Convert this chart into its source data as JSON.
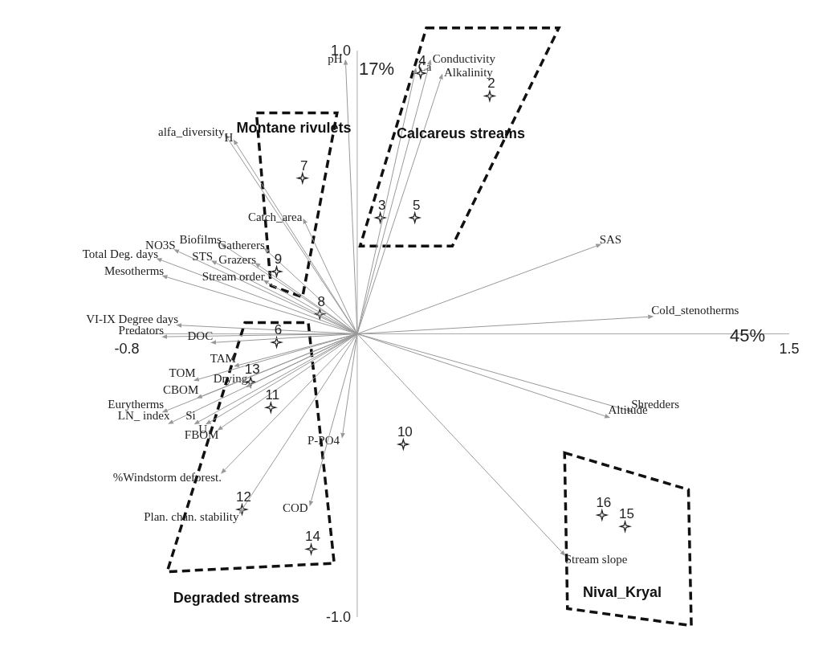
{
  "chart_data": {
    "type": "scatter",
    "xlabel": "45%",
    "ylabel": "17%",
    "xlim": [
      -0.8,
      1.5
    ],
    "ylim": [
      -1.0,
      1.0
    ],
    "xticks": [
      -0.8,
      1.5
    ],
    "yticks": [
      {
        "value": -1.0,
        "label": "-1.0"
      },
      {
        "value": 1.0,
        "label": "1.0"
      }
    ],
    "grid": false,
    "series": [
      {
        "type": "scatter",
        "marker": "star",
        "color": "#222222",
        "x": [
          0.46,
          0.22,
          0.08,
          0.2,
          -0.19,
          -0.28,
          -0.13,
          -0.28,
          -0.37,
          -0.3,
          0.16,
          -0.4,
          -0.16,
          0.85,
          0.93
        ],
        "values": [
          0.84,
          0.92,
          0.41,
          0.41,
          0.55,
          0.22,
          0.07,
          -0.03,
          -0.17,
          -0.26,
          -0.39,
          -0.62,
          -0.76,
          -0.64,
          -0.68
        ]
      },
      {
        "type": "line",
        "name": "pH",
        "color": "#999999",
        "x": [
          0,
          -0.04
        ],
        "values": [
          0,
          0.95
        ]
      },
      {
        "type": "line",
        "name": "Ca",
        "color": "#999999",
        "x": [
          0,
          0.2
        ],
        "values": [
          0,
          0.92
        ]
      },
      {
        "type": "line",
        "name": "Conductivity",
        "color": "#999999",
        "x": [
          0,
          0.25
        ],
        "values": [
          0,
          0.95
        ]
      },
      {
        "type": "line",
        "name": "Alkalinity",
        "color": "#999999",
        "x": [
          0,
          0.29
        ],
        "values": [
          0,
          0.9
        ]
      },
      {
        "type": "line",
        "name": "alfa_diversity",
        "color": "#999999",
        "x": [
          0,
          -0.45
        ],
        "values": [
          0,
          0.69
        ]
      },
      {
        "type": "line",
        "name": "H",
        "color": "#999999",
        "x": [
          0,
          -0.42
        ],
        "values": [
          0,
          0.67
        ]
      },
      {
        "type": "line",
        "name": "Catch_area",
        "color": "#999999",
        "x": [
          0,
          -0.18
        ],
        "values": [
          0,
          0.39
        ]
      },
      {
        "type": "line",
        "name": "Biofilms",
        "color": "#999999",
        "x": [
          0,
          -0.46
        ],
        "values": [
          0,
          0.31
        ]
      },
      {
        "type": "line",
        "name": "NO3S",
        "color": "#999999",
        "x": [
          0,
          -0.62
        ],
        "values": [
          0,
          0.29
        ]
      },
      {
        "type": "line",
        "name": "STS",
        "color": "#999999",
        "x": [
          0,
          -0.49
        ],
        "values": [
          0,
          0.25
        ]
      },
      {
        "type": "line",
        "name": "Gatherers",
        "color": "#999999",
        "x": [
          0,
          -0.31
        ],
        "values": [
          0,
          0.29
        ]
      },
      {
        "type": "line",
        "name": "Grazers",
        "color": "#999999",
        "x": [
          0,
          -0.34
        ],
        "values": [
          0,
          0.24
        ]
      },
      {
        "type": "line",
        "name": "Total Deg. days",
        "color": "#999999",
        "x": [
          0,
          -0.68
        ],
        "values": [
          0,
          0.26
        ]
      },
      {
        "type": "line",
        "name": "Mesotherms",
        "color": "#999999",
        "x": [
          0,
          -0.66
        ],
        "values": [
          0,
          0.2
        ]
      },
      {
        "type": "line",
        "name": "Stream order",
        "color": "#999999",
        "x": [
          0,
          -0.31
        ],
        "values": [
          0,
          0.18
        ]
      },
      {
        "type": "line",
        "name": "SAS",
        "color": "#999999",
        "x": [
          0,
          0.83
        ],
        "values": [
          0,
          0.31
        ]
      },
      {
        "type": "line",
        "name": "Cold_stenotherms",
        "color": "#999999",
        "x": [
          0,
          1.01
        ],
        "values": [
          0,
          0.06
        ]
      },
      {
        "type": "line",
        "name": "VI-IX Degree days",
        "color": "#999999",
        "x": [
          0,
          -0.61
        ],
        "values": [
          0,
          0.03
        ]
      },
      {
        "type": "line",
        "name": "Predators",
        "color": "#999999",
        "x": [
          0,
          -0.66
        ],
        "values": [
          0,
          -0.01
        ]
      },
      {
        "type": "line",
        "name": "DOC",
        "color": "#999999",
        "x": [
          0,
          -0.49
        ],
        "values": [
          0,
          -0.03
        ]
      },
      {
        "type": "line",
        "name": "TAM",
        "color": "#999999",
        "x": [
          0,
          -0.41
        ],
        "values": [
          0,
          -0.11
        ]
      },
      {
        "type": "line",
        "name": "TOM",
        "color": "#999999",
        "x": [
          0,
          -0.55
        ],
        "values": [
          0,
          -0.16
        ]
      },
      {
        "type": "line",
        "name": "Drying",
        "color": "#999999",
        "x": [
          0,
          -0.37
        ],
        "values": [
          0,
          -0.18
        ]
      },
      {
        "type": "line",
        "name": "CBOM",
        "color": "#999999",
        "x": [
          0,
          -0.54
        ],
        "values": [
          0,
          -0.22
        ]
      },
      {
        "type": "line",
        "name": "Eurytherms",
        "color": "#999999",
        "x": [
          0,
          -0.66
        ],
        "values": [
          0,
          -0.27
        ]
      },
      {
        "type": "line",
        "name": "LN_ index",
        "color": "#999999",
        "x": [
          0,
          -0.64
        ],
        "values": [
          0,
          -0.31
        ]
      },
      {
        "type": "line",
        "name": "Si",
        "color": "#999999",
        "x": [
          0,
          -0.55
        ],
        "values": [
          0,
          -0.31
        ]
      },
      {
        "type": "line",
        "name": "U",
        "color": "#999999",
        "x": [
          0,
          -0.51
        ],
        "values": [
          0,
          -0.31
        ]
      },
      {
        "type": "line",
        "name": "FBOM",
        "color": "#999999",
        "x": [
          0,
          -0.47
        ],
        "values": [
          0,
          -0.33
        ]
      },
      {
        "type": "line",
        "name": "Shredders",
        "color": "#999999",
        "x": [
          0,
          0.94
        ],
        "values": [
          0,
          -0.27
        ]
      },
      {
        "type": "line",
        "name": "Altitude",
        "color": "#999999",
        "x": [
          0,
          0.86
        ],
        "values": [
          0,
          -0.29
        ]
      },
      {
        "type": "line",
        "name": "P-PO4",
        "color": "#999999",
        "x": [
          0,
          -0.05
        ],
        "values": [
          0,
          -0.35
        ]
      },
      {
        "type": "line",
        "name": "%Windstorm deforest.",
        "color": "#999999",
        "x": [
          0,
          -0.46
        ],
        "values": [
          0,
          -0.48
        ]
      },
      {
        "type": "line",
        "name": "Plan. chan. stability",
        "color": "#999999",
        "x": [
          0,
          -0.4
        ],
        "values": [
          0,
          -0.62
        ]
      },
      {
        "type": "line",
        "name": "COD",
        "color": "#999999",
        "x": [
          0,
          -0.16
        ],
        "values": [
          0,
          -0.59
        ]
      },
      {
        "type": "line",
        "name": "Stream slope",
        "color": "#999999",
        "x": [
          0,
          0.71
        ],
        "values": [
          0,
          -0.77
        ]
      }
    ],
    "annotations": [
      "Montane rivulets",
      "Calcareus streams",
      "Degraded streams",
      "Nival_Kryal",
      {
        "text": "2",
        "x": 0.46,
        "y": 0.84
      },
      {
        "text": "4",
        "x": 0.22,
        "y": 0.92
      },
      {
        "text": "3",
        "x": 0.08,
        "y": 0.41
      },
      {
        "text": "5",
        "x": 0.2,
        "y": 0.41
      },
      {
        "text": "7",
        "x": -0.19,
        "y": 0.55
      },
      {
        "text": "9",
        "x": -0.28,
        "y": 0.22
      },
      {
        "text": "8",
        "x": -0.13,
        "y": 0.07
      },
      {
        "text": "6",
        "x": -0.28,
        "y": -0.03
      },
      {
        "text": "13",
        "x": -0.37,
        "y": -0.17
      },
      {
        "text": "11",
        "x": -0.3,
        "y": -0.26
      },
      {
        "text": "10",
        "x": 0.16,
        "y": -0.39
      },
      {
        "text": "12",
        "x": -0.4,
        "y": -0.62
      },
      {
        "text": "14",
        "x": -0.16,
        "y": -0.76
      },
      {
        "text": "16",
        "x": 0.85,
        "y": -0.64
      },
      {
        "text": "15",
        "x": 0.93,
        "y": -0.68
      }
    ]
  }
}
